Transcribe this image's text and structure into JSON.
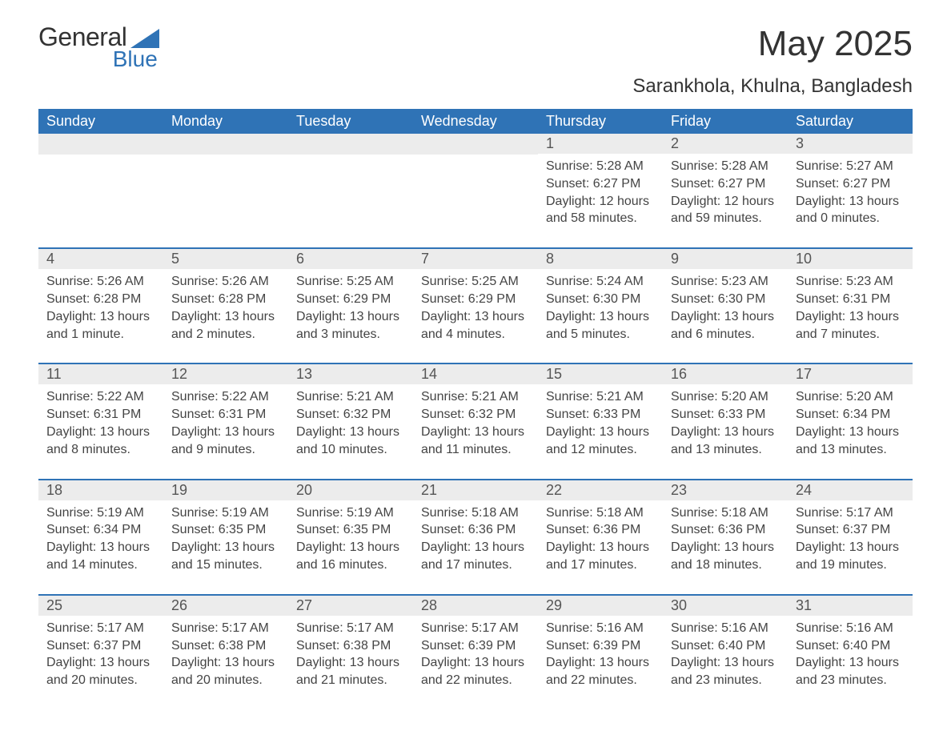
{
  "logo": {
    "text1": "General",
    "text2": "Blue",
    "tri_color": "#2f73b6"
  },
  "title": "May 2025",
  "location": "Sarankhola, Khulna, Bangladesh",
  "colors": {
    "header_bg": "#2f73b6",
    "header_text": "#ffffff",
    "daynum_bg": "#ececec",
    "row_border": "#2f73b6",
    "body_text": "#444444",
    "page_bg": "#ffffff"
  },
  "fonts": {
    "title_pt": 44,
    "location_pt": 24,
    "header_pt": 18,
    "daynum_pt": 18,
    "body_pt": 16
  },
  "day_headers": [
    "Sunday",
    "Monday",
    "Tuesday",
    "Wednesday",
    "Thursday",
    "Friday",
    "Saturday"
  ],
  "weeks": [
    [
      null,
      null,
      null,
      null,
      {
        "n": "1",
        "sunrise": "Sunrise: 5:28 AM",
        "sunset": "Sunset: 6:27 PM",
        "day1": "Daylight: 12 hours",
        "day2": "and 58 minutes."
      },
      {
        "n": "2",
        "sunrise": "Sunrise: 5:28 AM",
        "sunset": "Sunset: 6:27 PM",
        "day1": "Daylight: 12 hours",
        "day2": "and 59 minutes."
      },
      {
        "n": "3",
        "sunrise": "Sunrise: 5:27 AM",
        "sunset": "Sunset: 6:27 PM",
        "day1": "Daylight: 13 hours",
        "day2": "and 0 minutes."
      }
    ],
    [
      {
        "n": "4",
        "sunrise": "Sunrise: 5:26 AM",
        "sunset": "Sunset: 6:28 PM",
        "day1": "Daylight: 13 hours",
        "day2": "and 1 minute."
      },
      {
        "n": "5",
        "sunrise": "Sunrise: 5:26 AM",
        "sunset": "Sunset: 6:28 PM",
        "day1": "Daylight: 13 hours",
        "day2": "and 2 minutes."
      },
      {
        "n": "6",
        "sunrise": "Sunrise: 5:25 AM",
        "sunset": "Sunset: 6:29 PM",
        "day1": "Daylight: 13 hours",
        "day2": "and 3 minutes."
      },
      {
        "n": "7",
        "sunrise": "Sunrise: 5:25 AM",
        "sunset": "Sunset: 6:29 PM",
        "day1": "Daylight: 13 hours",
        "day2": "and 4 minutes."
      },
      {
        "n": "8",
        "sunrise": "Sunrise: 5:24 AM",
        "sunset": "Sunset: 6:30 PM",
        "day1": "Daylight: 13 hours",
        "day2": "and 5 minutes."
      },
      {
        "n": "9",
        "sunrise": "Sunrise: 5:23 AM",
        "sunset": "Sunset: 6:30 PM",
        "day1": "Daylight: 13 hours",
        "day2": "and 6 minutes."
      },
      {
        "n": "10",
        "sunrise": "Sunrise: 5:23 AM",
        "sunset": "Sunset: 6:31 PM",
        "day1": "Daylight: 13 hours",
        "day2": "and 7 minutes."
      }
    ],
    [
      {
        "n": "11",
        "sunrise": "Sunrise: 5:22 AM",
        "sunset": "Sunset: 6:31 PM",
        "day1": "Daylight: 13 hours",
        "day2": "and 8 minutes."
      },
      {
        "n": "12",
        "sunrise": "Sunrise: 5:22 AM",
        "sunset": "Sunset: 6:31 PM",
        "day1": "Daylight: 13 hours",
        "day2": "and 9 minutes."
      },
      {
        "n": "13",
        "sunrise": "Sunrise: 5:21 AM",
        "sunset": "Sunset: 6:32 PM",
        "day1": "Daylight: 13 hours",
        "day2": "and 10 minutes."
      },
      {
        "n": "14",
        "sunrise": "Sunrise: 5:21 AM",
        "sunset": "Sunset: 6:32 PM",
        "day1": "Daylight: 13 hours",
        "day2": "and 11 minutes."
      },
      {
        "n": "15",
        "sunrise": "Sunrise: 5:21 AM",
        "sunset": "Sunset: 6:33 PM",
        "day1": "Daylight: 13 hours",
        "day2": "and 12 minutes."
      },
      {
        "n": "16",
        "sunrise": "Sunrise: 5:20 AM",
        "sunset": "Sunset: 6:33 PM",
        "day1": "Daylight: 13 hours",
        "day2": "and 13 minutes."
      },
      {
        "n": "17",
        "sunrise": "Sunrise: 5:20 AM",
        "sunset": "Sunset: 6:34 PM",
        "day1": "Daylight: 13 hours",
        "day2": "and 13 minutes."
      }
    ],
    [
      {
        "n": "18",
        "sunrise": "Sunrise: 5:19 AM",
        "sunset": "Sunset: 6:34 PM",
        "day1": "Daylight: 13 hours",
        "day2": "and 14 minutes."
      },
      {
        "n": "19",
        "sunrise": "Sunrise: 5:19 AM",
        "sunset": "Sunset: 6:35 PM",
        "day1": "Daylight: 13 hours",
        "day2": "and 15 minutes."
      },
      {
        "n": "20",
        "sunrise": "Sunrise: 5:19 AM",
        "sunset": "Sunset: 6:35 PM",
        "day1": "Daylight: 13 hours",
        "day2": "and 16 minutes."
      },
      {
        "n": "21",
        "sunrise": "Sunrise: 5:18 AM",
        "sunset": "Sunset: 6:36 PM",
        "day1": "Daylight: 13 hours",
        "day2": "and 17 minutes."
      },
      {
        "n": "22",
        "sunrise": "Sunrise: 5:18 AM",
        "sunset": "Sunset: 6:36 PM",
        "day1": "Daylight: 13 hours",
        "day2": "and 17 minutes."
      },
      {
        "n": "23",
        "sunrise": "Sunrise: 5:18 AM",
        "sunset": "Sunset: 6:36 PM",
        "day1": "Daylight: 13 hours",
        "day2": "and 18 minutes."
      },
      {
        "n": "24",
        "sunrise": "Sunrise: 5:17 AM",
        "sunset": "Sunset: 6:37 PM",
        "day1": "Daylight: 13 hours",
        "day2": "and 19 minutes."
      }
    ],
    [
      {
        "n": "25",
        "sunrise": "Sunrise: 5:17 AM",
        "sunset": "Sunset: 6:37 PM",
        "day1": "Daylight: 13 hours",
        "day2": "and 20 minutes."
      },
      {
        "n": "26",
        "sunrise": "Sunrise: 5:17 AM",
        "sunset": "Sunset: 6:38 PM",
        "day1": "Daylight: 13 hours",
        "day2": "and 20 minutes."
      },
      {
        "n": "27",
        "sunrise": "Sunrise: 5:17 AM",
        "sunset": "Sunset: 6:38 PM",
        "day1": "Daylight: 13 hours",
        "day2": "and 21 minutes."
      },
      {
        "n": "28",
        "sunrise": "Sunrise: 5:17 AM",
        "sunset": "Sunset: 6:39 PM",
        "day1": "Daylight: 13 hours",
        "day2": "and 22 minutes."
      },
      {
        "n": "29",
        "sunrise": "Sunrise: 5:16 AM",
        "sunset": "Sunset: 6:39 PM",
        "day1": "Daylight: 13 hours",
        "day2": "and 22 minutes."
      },
      {
        "n": "30",
        "sunrise": "Sunrise: 5:16 AM",
        "sunset": "Sunset: 6:40 PM",
        "day1": "Daylight: 13 hours",
        "day2": "and 23 minutes."
      },
      {
        "n": "31",
        "sunrise": "Sunrise: 5:16 AM",
        "sunset": "Sunset: 6:40 PM",
        "day1": "Daylight: 13 hours",
        "day2": "and 23 minutes."
      }
    ]
  ]
}
